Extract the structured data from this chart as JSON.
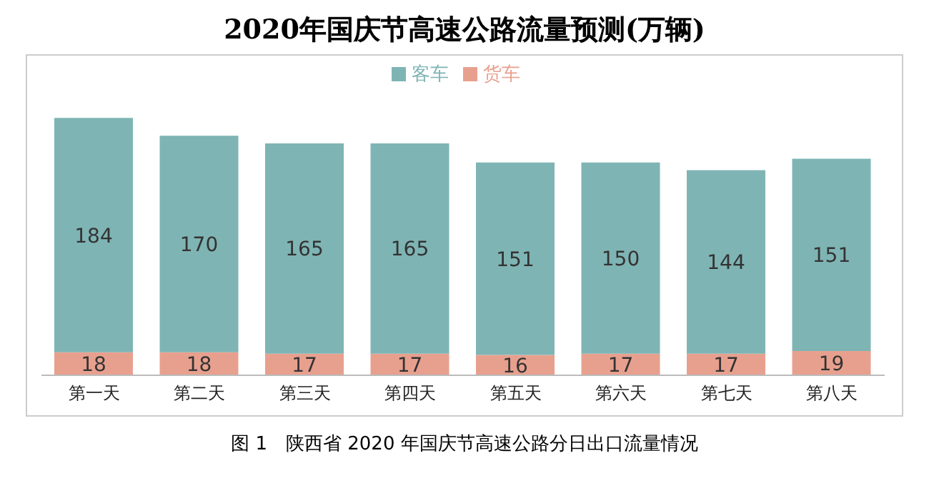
{
  "chart_data": {
    "type": "bar",
    "title": "2020年国庆节高速公路流量预测(万辆)",
    "categories": [
      "第一天",
      "第二天",
      "第三天",
      "第四天",
      "第五天",
      "第六天",
      "第七天",
      "第八天"
    ],
    "stacked": true,
    "data_labels": true,
    "legend": "top",
    "grid": false,
    "series": [
      {
        "name": "货车",
        "color": "#e8a08e",
        "values": [
          18,
          18,
          17,
          17,
          16,
          17,
          17,
          19
        ]
      },
      {
        "name": "客车",
        "color": "#7fb4b4",
        "values": [
          184,
          170,
          165,
          165,
          151,
          150,
          144,
          151
        ]
      }
    ],
    "annotations": [
      "图 1　陕西省 2020 年国庆节高速公路分日出口流量情况"
    ]
  }
}
